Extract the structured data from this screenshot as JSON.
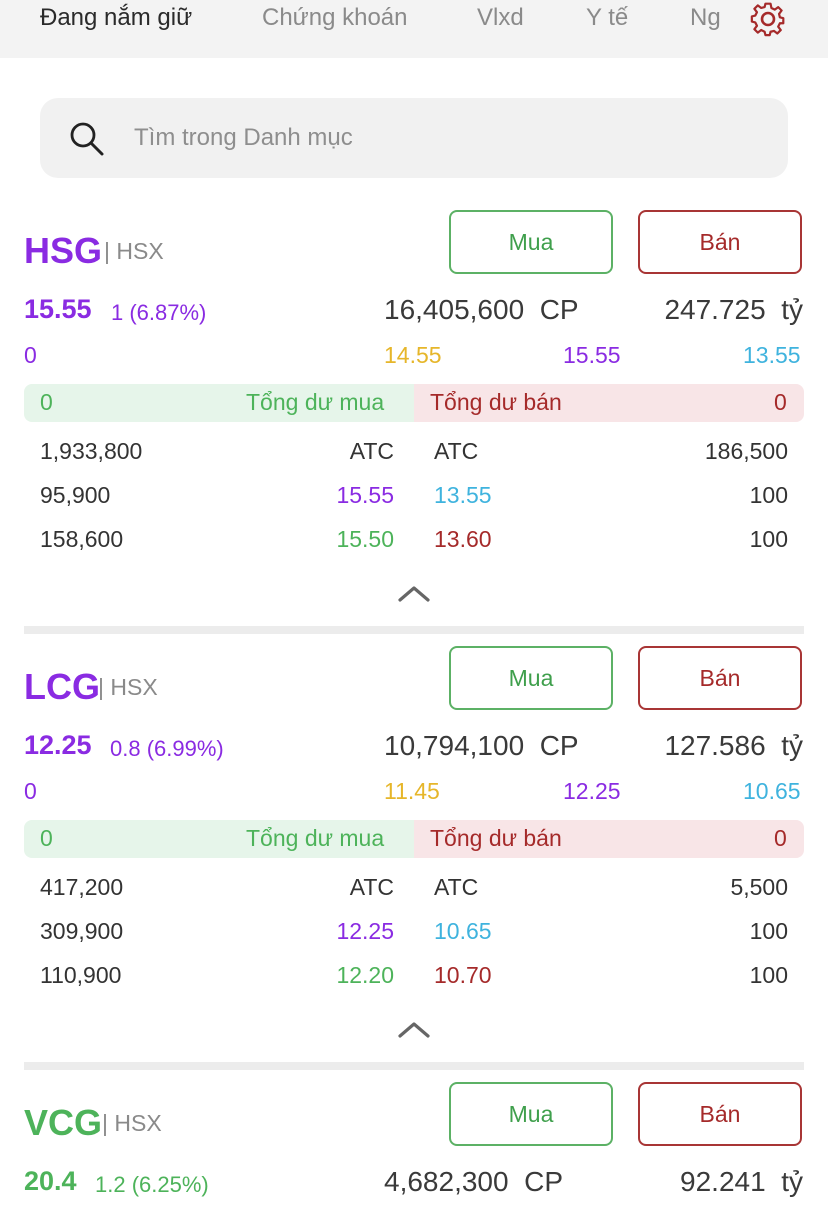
{
  "tabs": [
    "Đang nắm giữ",
    "Chứng khoán",
    "Vlxd",
    "Y tế",
    "Ng"
  ],
  "search": {
    "placeholder": "Tìm trong Danh mục"
  },
  "colors": {
    "ceiling": "#8a2be2",
    "up": "#4db35a",
    "ref": "#e6b62a",
    "floor": "#3fb3de",
    "down": "#a52a2a"
  },
  "stocks": [
    {
      "ticker": "HSG",
      "exchange": "| HSX",
      "buy_label": "Mua",
      "sell_label": "Bán",
      "price": "15.55",
      "change": "1 (6.87%)",
      "volume": "16,405,600",
      "vol_unit": "CP",
      "value": "247.725",
      "value_unit": "tỷ",
      "r0": "0",
      "ref": "14.55",
      "ceiling": "15.55",
      "floor": "13.55",
      "sum_buy_val": "0",
      "sum_buy_label": "Tổng dư mua",
      "sum_sell_label": "Tổng dư bán",
      "sum_sell_val": "0",
      "orders": [
        {
          "bvol": "1,933,800",
          "bprice": "ATC",
          "sprice": "ATC",
          "svol": "186,500"
        },
        {
          "bvol": "95,900",
          "bprice": "15.55",
          "sprice": "13.55",
          "svol": "100"
        },
        {
          "bvol": "158,600",
          "bprice": "15.50",
          "sprice": "13.60",
          "svol": "100"
        }
      ]
    },
    {
      "ticker": "LCG",
      "exchange": "| HSX",
      "buy_label": "Mua",
      "sell_label": "Bán",
      "price": "12.25",
      "change": "0.8 (6.99%)",
      "volume": "10,794,100",
      "vol_unit": "CP",
      "value": "127.586",
      "value_unit": "tỷ",
      "r0": "0",
      "ref": "11.45",
      "ceiling": "12.25",
      "floor": "10.65",
      "sum_buy_val": "0",
      "sum_buy_label": "Tổng dư mua",
      "sum_sell_label": "Tổng dư bán",
      "sum_sell_val": "0",
      "orders": [
        {
          "bvol": "417,200",
          "bprice": "ATC",
          "sprice": "ATC",
          "svol": "5,500"
        },
        {
          "bvol": "309,900",
          "bprice": "12.25",
          "sprice": "10.65",
          "svol": "100"
        },
        {
          "bvol": "110,900",
          "bprice": "12.20",
          "sprice": "10.70",
          "svol": "100"
        }
      ]
    },
    {
      "ticker": "VCG",
      "exchange": "| HSX",
      "buy_label": "Mua",
      "sell_label": "Bán",
      "price": "20.4",
      "change": "1.2 (6.25%)",
      "volume": "4,682,300",
      "vol_unit": "CP",
      "value": "92.241",
      "value_unit": "tỷ"
    }
  ]
}
